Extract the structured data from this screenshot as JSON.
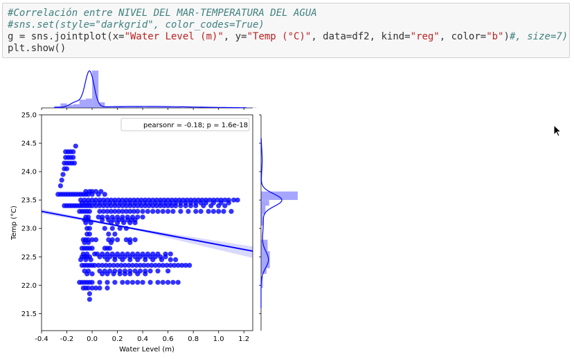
{
  "code_cell": {
    "lines": [
      {
        "parts": [
          {
            "t": "#Correlación entre NIVEL DEL MAR-TEMPERATURA DEL AGUA",
            "c": "c-comment"
          }
        ]
      },
      {
        "parts": [
          {
            "t": "#sns.set(style=\"darkgrid\", color_codes=True)",
            "c": "c-comment"
          }
        ]
      },
      {
        "parts": [
          {
            "t": "g = sns.jointplot(x=",
            "c": "c-kw"
          },
          {
            "t": "\"Water Level (m)\"",
            "c": "c-str"
          },
          {
            "t": ", y=",
            "c": "c-kw"
          },
          {
            "t": "\"Temp (°C)\"",
            "c": "c-str"
          },
          {
            "t": ", data=df2, kind=",
            "c": "c-kw"
          },
          {
            "t": "\"reg\"",
            "c": "c-str"
          },
          {
            "t": ", color=",
            "c": "c-kw"
          },
          {
            "t": "\"b\"",
            "c": "c-str"
          },
          {
            "t": ")",
            "c": "c-kw"
          },
          {
            "t": "#, size=7)",
            "c": "c-comment"
          }
        ]
      },
      {
        "parts": [
          {
            "t": "plt.show()",
            "c": "c-kw"
          }
        ]
      }
    ]
  },
  "chart_data": {
    "type": "scatter",
    "xlabel": "Water Level (m)",
    "ylabel": "Temp (°C)",
    "xlim": [
      -0.4,
      1.27
    ],
    "ylim": [
      21.2,
      25.0
    ],
    "xticks": [
      "-0.4",
      "-0.2",
      "0.0",
      "0.2",
      "0.4",
      "0.6",
      "0.8",
      "1.0",
      "1.2"
    ],
    "xtick_values": [
      -0.4,
      -0.2,
      0.0,
      0.2,
      0.4,
      0.6,
      0.8,
      1.0,
      1.2
    ],
    "yticks": [
      "21.5",
      "22.0",
      "22.5",
      "23.0",
      "23.5",
      "24.0",
      "24.5",
      "25.0"
    ],
    "ytick_values": [
      21.5,
      22.0,
      22.5,
      23.0,
      23.5,
      24.0,
      24.5,
      25.0
    ],
    "legend_text": "pearsonr = -0.18; p = 1.6e-18",
    "legend_position": "top-right",
    "color": "#0000ff",
    "regression": {
      "x": [
        -0.4,
        1.27
      ],
      "y": [
        23.3,
        22.6
      ]
    },
    "point_rows": [
      {
        "y": 24.45,
        "x": [
          -0.13
        ]
      },
      {
        "y": 24.35,
        "x": [
          -0.21,
          -0.19,
          -0.17,
          -0.15
        ]
      },
      {
        "y": 24.25,
        "x": [
          -0.21,
          -0.19,
          -0.17,
          -0.15
        ]
      },
      {
        "y": 24.15,
        "x": [
          -0.22,
          -0.2,
          -0.18,
          -0.16,
          -0.14
        ]
      },
      {
        "y": 24.05,
        "x": [
          -0.22,
          -0.2
        ]
      },
      {
        "y": 23.95,
        "x": [
          -0.23
        ]
      },
      {
        "y": 23.85,
        "x": [
          -0.24
        ]
      },
      {
        "y": 23.75,
        "x": [
          -0.25
        ]
      },
      {
        "y": 23.65,
        "x": [
          -0.05,
          -0.02,
          0.0,
          0.03,
          0.07
        ]
      },
      {
        "y": 23.6,
        "x": [
          -0.27,
          -0.25,
          -0.23,
          -0.21,
          -0.19,
          -0.17,
          -0.15,
          -0.13,
          -0.11,
          -0.09,
          -0.07,
          -0.05,
          -0.03,
          0.0,
          0.05,
          0.1
        ]
      },
      {
        "y": 23.5,
        "x": [
          -0.09,
          -0.06,
          -0.03,
          0.0,
          0.03,
          0.06,
          0.09,
          0.12,
          0.15,
          0.18,
          0.21,
          0.24,
          0.27,
          0.3,
          0.33,
          0.36,
          0.39,
          0.42,
          0.45,
          0.48,
          0.51,
          0.54,
          0.57,
          0.6,
          0.63,
          0.66,
          0.69,
          0.72,
          0.75,
          0.78,
          0.81,
          0.84,
          0.87,
          0.9,
          0.93,
          0.96,
          0.99,
          1.02,
          1.05,
          1.08,
          1.12,
          1.15
        ]
      },
      {
        "y": 23.45,
        "x": [
          -0.08,
          -0.05,
          -0.02,
          0.02,
          0.06,
          0.1,
          0.14,
          0.18,
          0.22,
          0.26,
          0.3,
          0.34,
          0.38,
          0.42,
          0.46,
          0.5,
          0.54,
          0.58,
          0.62,
          0.66,
          0.7,
          0.74,
          0.78,
          0.82,
          0.86,
          0.9,
          0.96,
          1.02,
          1.08
        ]
      },
      {
        "y": 23.4,
        "x": [
          -0.22,
          -0.2,
          -0.18,
          -0.16,
          -0.14,
          -0.12,
          -0.1,
          -0.08,
          -0.06,
          -0.04,
          -0.02,
          0.0,
          0.03,
          0.06,
          0.09,
          0.12,
          0.15,
          0.18,
          0.21,
          0.24,
          0.27,
          0.3,
          0.33,
          0.36,
          0.39,
          0.42,
          0.45,
          0.48,
          0.51,
          0.54,
          0.57,
          0.6,
          0.63,
          0.66,
          0.7,
          0.74,
          0.78,
          0.82,
          0.88,
          0.94,
          1.0,
          1.05
        ]
      },
      {
        "y": 23.3,
        "x": [
          -0.1,
          -0.08,
          -0.06,
          -0.04,
          -0.02,
          0.06,
          0.09,
          0.12,
          0.15,
          0.18,
          0.21,
          0.24,
          0.27,
          0.3,
          0.33,
          0.36,
          0.4,
          0.44,
          0.48,
          0.52,
          0.56,
          0.6,
          0.64,
          0.7,
          0.76,
          0.82,
          0.86,
          0.92,
          0.96,
          1.0,
          1.04,
          1.1
        ]
      },
      {
        "y": 23.2,
        "x": [
          -0.05,
          -0.03,
          0.05,
          0.08,
          0.12,
          0.16,
          0.2,
          0.24,
          0.28,
          0.32,
          0.36,
          0.4
        ]
      },
      {
        "y": 23.15,
        "x": [
          -0.06,
          -0.03,
          0.08,
          0.13,
          0.17,
          0.21,
          0.24,
          0.28,
          0.31,
          0.34
        ]
      },
      {
        "y": 23.1,
        "x": [
          -0.05,
          -0.01,
          0.15,
          0.2,
          0.25,
          0.3,
          0.34
        ]
      },
      {
        "y": 23.0,
        "x": [
          -0.04,
          -0.02,
          0.1,
          0.16,
          0.22,
          0.27
        ]
      },
      {
        "y": 22.9,
        "x": [
          -0.04,
          -0.02,
          0.13,
          0.18
        ]
      },
      {
        "y": 22.8,
        "x": [
          -0.07,
          -0.05,
          -0.03,
          0.0,
          0.03,
          0.13,
          0.16,
          0.2,
          0.27,
          0.3,
          0.34
        ]
      },
      {
        "y": 22.75,
        "x": [
          -0.06,
          -0.03,
          0.15,
          0.3
        ]
      },
      {
        "y": 22.65,
        "x": [
          -0.08,
          -0.06,
          -0.04,
          -0.02,
          0.0,
          0.1,
          0.12,
          0.14
        ]
      },
      {
        "y": 22.55,
        "x": [
          -0.07,
          -0.04,
          0.02,
          0.04,
          0.08,
          0.12,
          0.16,
          0.2,
          0.24,
          0.28,
          0.32,
          0.36,
          0.4,
          0.44,
          0.48,
          0.52,
          0.58,
          0.62
        ]
      },
      {
        "y": 22.5,
        "x": [
          -0.08,
          -0.06,
          -0.04,
          -0.02,
          0.06,
          0.1,
          0.14,
          0.18,
          0.22,
          0.26,
          0.3,
          0.34,
          0.38,
          0.42,
          0.46,
          0.5,
          0.54,
          0.58
        ]
      },
      {
        "y": 22.45,
        "x": [
          -0.09,
          -0.05,
          -0.01,
          0.12,
          0.18,
          0.24,
          0.3,
          0.36,
          0.42,
          0.48,
          0.55,
          0.62,
          0.66
        ]
      },
      {
        "y": 22.35,
        "x": [
          -0.08,
          -0.06,
          -0.04,
          -0.02,
          0.0,
          0.02,
          0.05,
          0.08,
          0.11,
          0.14,
          0.17,
          0.2,
          0.23,
          0.26,
          0.29,
          0.32,
          0.35,
          0.38,
          0.41,
          0.44,
          0.47,
          0.5,
          0.53,
          0.56,
          0.59,
          0.62,
          0.65,
          0.68,
          0.71,
          0.74,
          0.77
        ]
      },
      {
        "y": 22.25,
        "x": [
          -0.06,
          -0.03,
          0.06,
          0.1,
          0.14,
          0.18,
          0.22,
          0.26,
          0.3,
          0.34,
          0.38,
          0.42,
          0.46,
          0.52,
          0.6
        ]
      },
      {
        "y": 22.2,
        "x": [
          -0.04,
          0.0,
          0.08,
          0.12,
          0.17,
          0.22,
          0.26,
          0.3,
          0.36,
          0.42
        ]
      },
      {
        "y": 22.05,
        "x": [
          -0.1,
          -0.08,
          -0.06,
          -0.04,
          -0.02,
          0.0,
          0.06,
          0.12,
          0.18,
          0.24,
          0.28,
          0.32,
          0.36,
          0.4,
          0.46,
          0.52,
          0.56,
          0.6,
          0.64,
          0.68
        ]
      },
      {
        "y": 21.95,
        "x": [
          -0.07,
          -0.05,
          -0.03,
          0.0,
          0.03,
          0.06,
          0.12
        ]
      },
      {
        "y": 21.85,
        "x": [
          -0.02
        ]
      },
      {
        "y": 21.75,
        "x": [
          -0.02
        ]
      }
    ],
    "x_hist": {
      "bin_edges_start": -0.3,
      "bin_width": 0.05,
      "densities": [
        0.05,
        0.12,
        0.08,
        0.1,
        0.22,
        0.25,
        1.0,
        0.15,
        0.04,
        0.03,
        0.03,
        0.02,
        0.02,
        0.03,
        0.02,
        0.02,
        0.02,
        0.02,
        0.02,
        0.02,
        0.01,
        0.01,
        0.01,
        0.01,
        0.01,
        0.01,
        0.01,
        0.01,
        0.01,
        0.01,
        0.01,
        0.01
      ]
    },
    "y_hist": {
      "bins": [
        {
          "y0": 21.95,
          "y1": 22.15,
          "d": 0.05
        },
        {
          "y0": 22.2,
          "y1": 22.3,
          "d": 0.15
        },
        {
          "y0": 22.3,
          "y1": 22.6,
          "d": 0.24
        },
        {
          "y0": 22.6,
          "y1": 22.8,
          "d": 0.18
        },
        {
          "y0": 23.05,
          "y1": 23.25,
          "d": 0.05
        },
        {
          "y0": 23.25,
          "y1": 23.4,
          "d": 0.12
        },
        {
          "y0": 23.4,
          "y1": 23.5,
          "d": 0.22
        },
        {
          "y0": 23.5,
          "y1": 23.65,
          "d": 1.0
        }
      ]
    }
  }
}
